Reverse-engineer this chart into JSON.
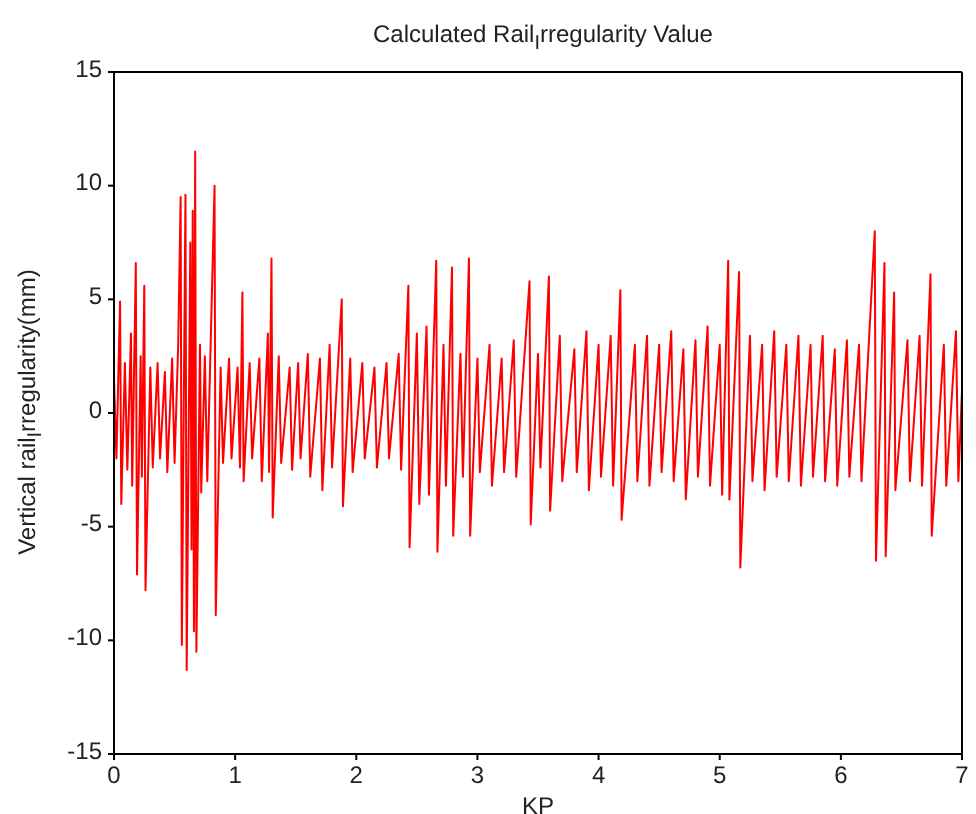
{
  "chart_data": {
    "type": "line",
    "title": "Calculated Rail$_{I}$rregularity Value",
    "xlabel": "KP",
    "ylabel": "Vertical rail$_{I}$rregularity(mm)",
    "xlim": [
      0,
      7
    ],
    "xticks": [
      0,
      1,
      2,
      3,
      4,
      5,
      6,
      7
    ],
    "ylim": [
      -15,
      15
    ],
    "yticks": [
      -15,
      -10,
      -5,
      0,
      5,
      10,
      15
    ],
    "grid": false,
    "legend": false,
    "marker": "none",
    "line_style": "solid",
    "x": [
      0,
      0.02,
      0.05,
      0.06,
      0.09,
      0.11,
      0.14,
      0.15,
      0.18,
      0.19,
      0.22,
      0.23,
      0.25,
      0.26,
      0.3,
      0.32,
      0.36,
      0.38,
      0.42,
      0.44,
      0.48,
      0.5,
      0.53,
      0.55,
      0.56,
      0.59,
      0.6,
      0.63,
      0.64,
      0.65,
      0.66,
      0.67,
      0.68,
      0.71,
      0.72,
      0.75,
      0.77,
      0.83,
      0.84,
      0.88,
      0.9,
      0.95,
      0.97,
      1.02,
      1.04,
      1.06,
      1.07,
      1.12,
      1.14,
      1.2,
      1.22,
      1.27,
      1.28,
      1.3,
      1.31,
      1.36,
      1.38,
      1.45,
      1.47,
      1.52,
      1.54,
      1.6,
      1.62,
      1.7,
      1.72,
      1.78,
      1.8,
      1.88,
      1.89,
      1.95,
      1.97,
      2.05,
      2.07,
      2.15,
      2.17,
      2.25,
      2.27,
      2.35,
      2.37,
      2.43,
      2.44,
      2.5,
      2.52,
      2.58,
      2.6,
      2.66,
      2.67,
      2.72,
      2.74,
      2.79,
      2.8,
      2.86,
      2.88,
      2.93,
      2.94,
      3.0,
      3.02,
      3.1,
      3.12,
      3.2,
      3.22,
      3.3,
      3.32,
      3.43,
      3.44,
      3.5,
      3.52,
      3.59,
      3.6,
      3.68,
      3.7,
      3.8,
      3.82,
      3.9,
      3.92,
      4.0,
      4.02,
      4.1,
      4.12,
      4.18,
      4.19,
      4.3,
      4.32,
      4.4,
      4.42,
      4.5,
      4.52,
      4.6,
      4.62,
      4.7,
      4.72,
      4.8,
      4.82,
      4.9,
      4.92,
      5.0,
      5.02,
      5.07,
      5.08,
      5.16,
      5.17,
      5.25,
      5.27,
      5.35,
      5.37,
      5.45,
      5.47,
      5.55,
      5.57,
      5.65,
      5.67,
      5.75,
      5.77,
      5.85,
      5.87,
      5.95,
      5.97,
      6.05,
      6.07,
      6.15,
      6.17,
      6.28,
      6.29,
      6.36,
      6.37,
      6.44,
      6.45,
      6.55,
      6.57,
      6.65,
      6.67,
      6.74,
      6.75,
      6.85,
      6.87,
      6.95,
      6.97,
      7.0
    ],
    "series": [
      {
        "color": "#ff0000",
        "values": [
          1.5,
          -2,
          4.9,
          -4.0,
          2.2,
          -2.5,
          3.5,
          -3.2,
          6.6,
          -7.1,
          2.5,
          -2.8,
          5.6,
          -7.8,
          2.0,
          -2.4,
          2.2,
          -2.0,
          1.8,
          -2.6,
          2.4,
          -2.2,
          3.0,
          9.5,
          -10.2,
          9.6,
          -11.3,
          7.5,
          -6.0,
          8.9,
          -9.6,
          11.5,
          -10.5,
          3.0,
          -3.5,
          2.5,
          -3.0,
          10.0,
          -8.9,
          2.0,
          -2.2,
          2.4,
          -2.0,
          2.0,
          -2.4,
          5.3,
          -3.0,
          2.2,
          -2.0,
          2.4,
          -3.0,
          3.5,
          -2.6,
          6.8,
          -4.6,
          2.5,
          -2.2,
          2.0,
          -2.5,
          2.2,
          -2.0,
          2.6,
          -2.8,
          2.4,
          -3.4,
          3.0,
          -2.4,
          5.0,
          -4.1,
          2.4,
          -2.6,
          2.2,
          -2.0,
          2.0,
          -2.4,
          2.2,
          -2.0,
          2.6,
          -2.5,
          5.6,
          -5.9,
          3.5,
          -4.0,
          3.8,
          -3.6,
          6.7,
          -6.1,
          3.0,
          -3.2,
          6.4,
          -5.4,
          2.6,
          -2.8,
          6.8,
          -5.4,
          2.4,
          -2.6,
          3.0,
          -3.2,
          2.4,
          -2.6,
          3.2,
          -2.8,
          5.8,
          -4.9,
          2.6,
          -2.4,
          6.0,
          -4.3,
          3.4,
          -3.0,
          2.8,
          -2.6,
          3.6,
          -3.4,
          3.0,
          -2.8,
          3.4,
          -3.2,
          5.4,
          -4.7,
          3.0,
          -3.0,
          3.4,
          -3.2,
          3.0,
          -2.6,
          3.6,
          -3.0,
          2.8,
          -3.8,
          3.2,
          -2.8,
          3.8,
          -3.2,
          3.0,
          -3.6,
          6.7,
          -3.8,
          6.2,
          -6.8,
          3.4,
          -3.0,
          3.0,
          -3.4,
          3.6,
          -2.8,
          3.0,
          -3.0,
          3.4,
          -3.2,
          3.0,
          -2.8,
          3.4,
          -3.0,
          2.8,
          -3.2,
          3.2,
          -2.8,
          3.0,
          -3.0,
          8.0,
          -6.5,
          6.6,
          -6.3,
          5.3,
          -3.4,
          3.2,
          -3.0,
          3.4,
          -3.2,
          6.1,
          -5.4,
          3.0,
          -3.2,
          3.6,
          -3.0,
          1.0
        ]
      }
    ]
  }
}
